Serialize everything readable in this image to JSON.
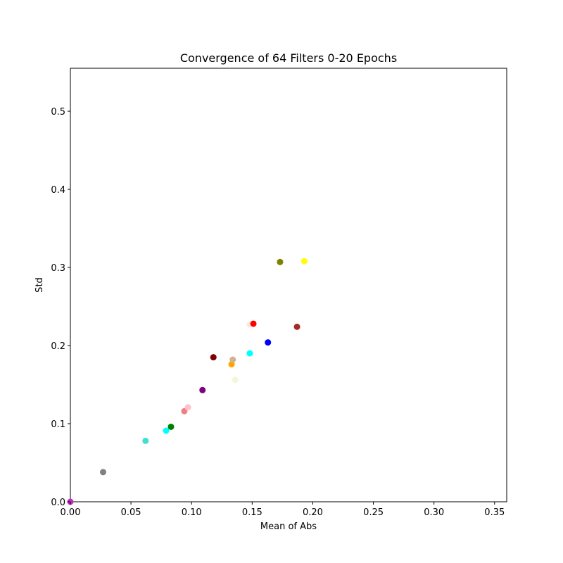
{
  "chart_data": {
    "type": "scatter",
    "title": "Convergence of 64 Filters 0-20 Epochs",
    "xlabel": "Mean of Abs",
    "ylabel": "Std",
    "xlim": [
      0.0,
      0.36
    ],
    "ylim": [
      0.0,
      0.555
    ],
    "xticks": [
      "0.00",
      "0.05",
      "0.10",
      "0.15",
      "0.20",
      "0.25",
      "0.30",
      "0.35"
    ],
    "yticks": [
      "0.0",
      "0.1",
      "0.2",
      "0.3",
      "0.4",
      "0.5"
    ],
    "grid": false,
    "legend": "none",
    "points": [
      {
        "x": 0.0,
        "y": 0.0,
        "color": "#c02cc0"
      },
      {
        "x": 0.027,
        "y": 0.038,
        "color": "#808080"
      },
      {
        "x": 0.062,
        "y": 0.078,
        "color": "#40e0d0"
      },
      {
        "x": 0.079,
        "y": 0.091,
        "color": "#00ffff"
      },
      {
        "x": 0.083,
        "y": 0.096,
        "color": "#008000"
      },
      {
        "x": 0.094,
        "y": 0.116,
        "color": "#f08080"
      },
      {
        "x": 0.097,
        "y": 0.121,
        "color": "#ffc0cb"
      },
      {
        "x": 0.109,
        "y": 0.143,
        "color": "#800080"
      },
      {
        "x": 0.118,
        "y": 0.185,
        "color": "#800000"
      },
      {
        "x": 0.133,
        "y": 0.176,
        "color": "#ffa500"
      },
      {
        "x": 0.134,
        "y": 0.182,
        "color": "#d2b48c"
      },
      {
        "x": 0.136,
        "y": 0.156,
        "color": "#f5f5dc"
      },
      {
        "x": 0.148,
        "y": 0.19,
        "color": "#00ffff"
      },
      {
        "x": 0.148,
        "y": 0.227,
        "color": "#ffe4e1"
      },
      {
        "x": 0.151,
        "y": 0.228,
        "color": "#ff0000"
      },
      {
        "x": 0.163,
        "y": 0.204,
        "color": "#0000ff"
      },
      {
        "x": 0.173,
        "y": 0.307,
        "color": "#808000"
      },
      {
        "x": 0.187,
        "y": 0.224,
        "color": "#a52a2a"
      },
      {
        "x": 0.193,
        "y": 0.308,
        "color": "#ffff00"
      }
    ]
  }
}
